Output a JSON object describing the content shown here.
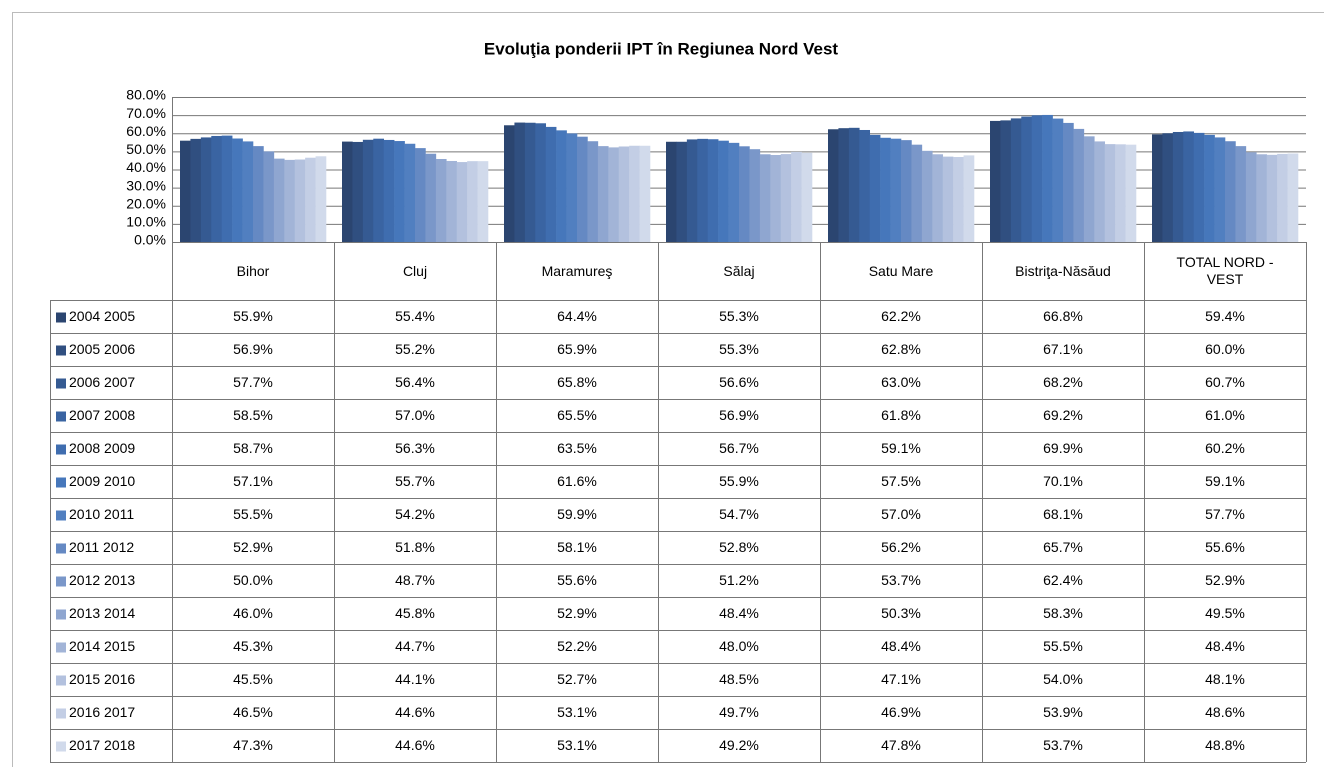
{
  "chart_data": {
    "type": "bar",
    "title": "Evoluţia ponderii IPT în Regiunea Nord Vest",
    "categories": [
      "Bihor",
      "Cluj",
      "Maramureş",
      "Sălaj",
      "Satu Mare",
      "Bistriţa-Năsăud",
      "TOTAL NORD - VEST"
    ],
    "ylim": [
      0,
      80
    ],
    "yticks": [
      {
        "value": 0,
        "label": "0.0%"
      },
      {
        "value": 10,
        "label": "10.0%"
      },
      {
        "value": 20,
        "label": "20.0%"
      },
      {
        "value": 30,
        "label": "30.0%"
      },
      {
        "value": 40,
        "label": "40.0%"
      },
      {
        "value": 50,
        "label": "50.0%"
      },
      {
        "value": 60,
        "label": "60.0%"
      },
      {
        "value": 70,
        "label": "70.0%"
      },
      {
        "value": 80,
        "label": "80.0%"
      }
    ],
    "grid": true,
    "series": [
      {
        "name": "2004 2005",
        "color": "#2b4570",
        "values": [
          55.9,
          55.4,
          64.4,
          55.3,
          62.2,
          66.8,
          59.4
        ],
        "value_labels": [
          "55.9%",
          "55.4%",
          "64.4%",
          "55.3%",
          "62.2%",
          "66.8%",
          "59.4%"
        ]
      },
      {
        "name": "2005 2006",
        "color": "#304f80",
        "values": [
          56.9,
          55.2,
          65.9,
          55.3,
          62.8,
          67.1,
          60.0
        ],
        "value_labels": [
          "56.9%",
          "55.2%",
          "65.9%",
          "55.3%",
          "62.8%",
          "67.1%",
          "60.0%"
        ]
      },
      {
        "name": "2006 2007",
        "color": "#355a92",
        "values": [
          57.7,
          56.4,
          65.8,
          56.6,
          63.0,
          68.2,
          60.7
        ],
        "value_labels": [
          "57.7%",
          "56.4%",
          "65.8%",
          "56.6%",
          "63.0%",
          "68.2%",
          "60.7%"
        ]
      },
      {
        "name": "2007 2008",
        "color": "#3a64a2",
        "values": [
          58.5,
          57.0,
          65.5,
          56.9,
          61.8,
          69.2,
          61.0
        ],
        "value_labels": [
          "58.5%",
          "57.0%",
          "65.5%",
          "56.9%",
          "61.8%",
          "69.2%",
          "61.0%"
        ]
      },
      {
        "name": "2008 2009",
        "color": "#3f6daf",
        "values": [
          58.7,
          56.3,
          63.5,
          56.7,
          59.1,
          69.9,
          60.2
        ],
        "value_labels": [
          "58.7%",
          "56.3%",
          "63.5%",
          "56.7%",
          "59.1%",
          "69.9%",
          "60.2%"
        ]
      },
      {
        "name": "2009 2010",
        "color": "#4677bb",
        "values": [
          57.1,
          55.7,
          61.6,
          55.9,
          57.5,
          70.1,
          59.1
        ],
        "value_labels": [
          "57.1%",
          "55.7%",
          "61.6%",
          "55.9%",
          "57.5%",
          "70.1%",
          "59.1%"
        ]
      },
      {
        "name": "2010 2011",
        "color": "#517fc0",
        "values": [
          55.5,
          54.2,
          59.9,
          54.7,
          57.0,
          68.1,
          57.7
        ],
        "value_labels": [
          "55.5%",
          "54.2%",
          "59.9%",
          "54.7%",
          "57.0%",
          "68.1%",
          "57.7%"
        ]
      },
      {
        "name": "2011 2012",
        "color": "#6589c3",
        "values": [
          52.9,
          51.8,
          58.1,
          52.8,
          56.2,
          65.7,
          55.6
        ],
        "value_labels": [
          "52.9%",
          "51.8%",
          "58.1%",
          "52.8%",
          "56.2%",
          "65.7%",
          "55.6%"
        ]
      },
      {
        "name": "2012 2013",
        "color": "#7a97c9",
        "values": [
          50.0,
          48.7,
          55.6,
          51.2,
          53.7,
          62.4,
          52.9
        ],
        "value_labels": [
          "50.0%",
          "48.7%",
          "55.6%",
          "51.2%",
          "53.7%",
          "62.4%",
          "52.9%"
        ]
      },
      {
        "name": "2013 2014",
        "color": "#8fa6d0",
        "values": [
          46.0,
          45.8,
          52.9,
          48.4,
          50.3,
          58.3,
          49.5
        ],
        "value_labels": [
          "46.0%",
          "45.8%",
          "52.9%",
          "48.4%",
          "50.3%",
          "58.3%",
          "49.5%"
        ]
      },
      {
        "name": "2014 2015",
        "color": "#a2b4d7",
        "values": [
          45.3,
          44.7,
          52.2,
          48.0,
          48.4,
          55.5,
          48.4
        ],
        "value_labels": [
          "45.3%",
          "44.7%",
          "52.2%",
          "48.0%",
          "48.4%",
          "55.5%",
          "48.4%"
        ]
      },
      {
        "name": "2015 2016",
        "color": "#b3c1de",
        "values": [
          45.5,
          44.1,
          52.7,
          48.5,
          47.1,
          54.0,
          48.1
        ],
        "value_labels": [
          "45.5%",
          "44.1%",
          "52.7%",
          "48.5%",
          "47.1%",
          "54.0%",
          "48.1%"
        ]
      },
      {
        "name": "2016 2017",
        "color": "#c3cee5",
        "values": [
          46.5,
          44.6,
          53.1,
          49.7,
          46.9,
          53.9,
          48.6
        ],
        "value_labels": [
          "46.5%",
          "44.6%",
          "53.1%",
          "49.7%",
          "46.9%",
          "53.9%",
          "48.6%"
        ]
      },
      {
        "name": "2017 2018",
        "color": "#d1daeb",
        "values": [
          47.3,
          44.6,
          53.1,
          49.2,
          47.8,
          53.7,
          48.8
        ],
        "value_labels": [
          "47.3%",
          "44.6%",
          "53.1%",
          "49.2%",
          "47.8%",
          "53.7%",
          "48.8%"
        ]
      }
    ]
  }
}
